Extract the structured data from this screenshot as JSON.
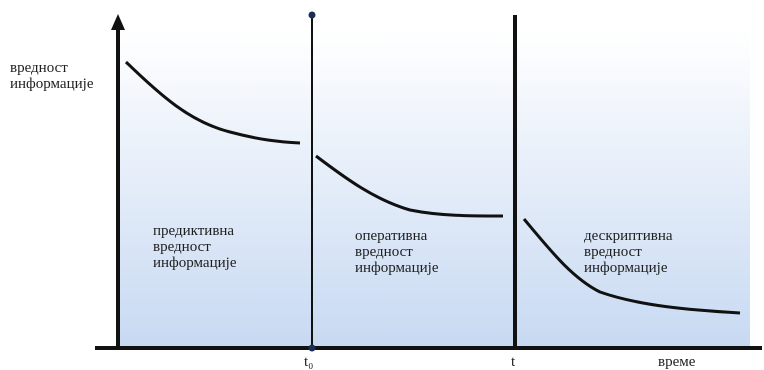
{
  "y_axis_label": [
    "вредност",
    "информације"
  ],
  "x_axis_label": "време",
  "markers": {
    "t0": "t₀",
    "t": "t"
  },
  "regions": [
    {
      "lines": [
        "предиктивна",
        "вредност",
        "информације"
      ]
    },
    {
      "lines": [
        "оперативна",
        "вредност",
        "информације"
      ]
    },
    {
      "lines": [
        "дескриптивна",
        "вредност",
        "информације"
      ]
    }
  ],
  "colors": {
    "gradient_top": "#ffffff",
    "gradient_bottom": "#c7d9f2",
    "line": "#111111",
    "marker_dot": "#1a2d52"
  }
}
